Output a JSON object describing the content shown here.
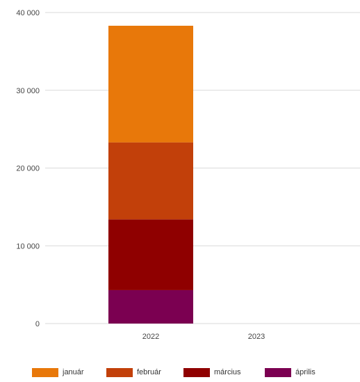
{
  "chart_data": {
    "type": "bar",
    "stacked": true,
    "categories": [
      "2022",
      "2023"
    ],
    "series": [
      {
        "name": "április",
        "color": "#7b0051",
        "values": [
          4300,
          0
        ]
      },
      {
        "name": "március",
        "color": "#8f0000",
        "values": [
          9100,
          0
        ]
      },
      {
        "name": "február",
        "color": "#c2400a",
        "values": [
          9900,
          0
        ]
      },
      {
        "name": "január",
        "color": "#e8780a",
        "values": [
          15000,
          0
        ]
      }
    ],
    "legend_order": [
      "január",
      "február",
      "március",
      "április"
    ],
    "yticks": [
      "0",
      "10 000",
      "20 000",
      "30 000",
      "40 000"
    ],
    "ylim": [
      0,
      40000
    ],
    "grid": true,
    "legend_position": "bottom"
  }
}
